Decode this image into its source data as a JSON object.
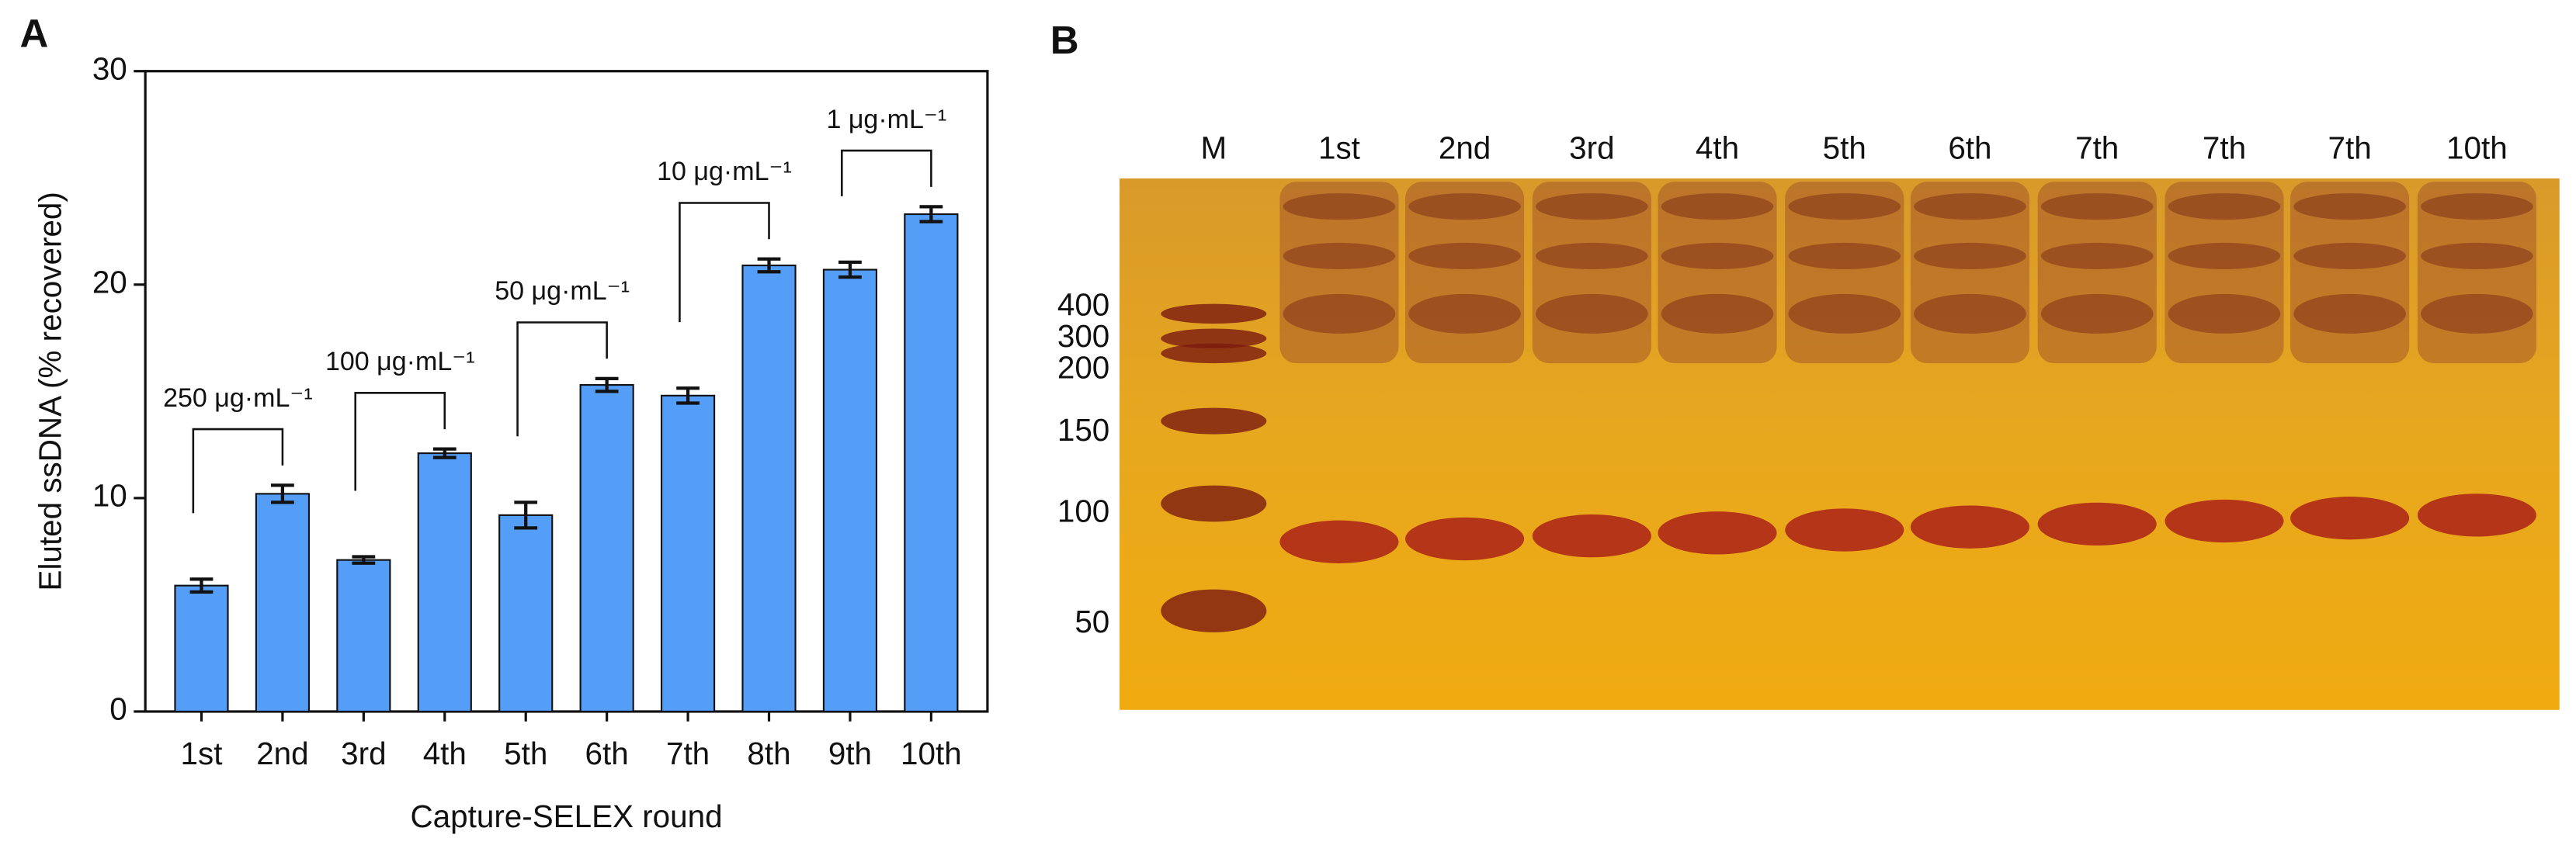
{
  "panel_a": {
    "label": "A"
  },
  "chart_data": {
    "type": "bar",
    "x_label": "Capture-SELEX round",
    "y_label": "Eluted ssDNA (% recovered)",
    "categories": [
      "1st",
      "2nd",
      "3rd",
      "4th",
      "5th",
      "6th",
      "7th",
      "8th",
      "9th",
      "10th"
    ],
    "values": [
      5.9,
      10.2,
      7.1,
      12.1,
      9.2,
      15.3,
      14.8,
      20.9,
      20.7,
      23.3
    ],
    "errors": [
      0.3,
      0.4,
      0.15,
      0.2,
      0.6,
      0.3,
      0.35,
      0.3,
      0.35,
      0.35
    ],
    "color": "#559ef8",
    "ylim": [
      0,
      30
    ],
    "yticks": [
      0,
      10,
      20,
      30
    ],
    "annotations": [
      "250 μg·mL⁻¹",
      "100 μg·mL⁻¹",
      "50 μg·mL⁻¹",
      "10 μg·mL⁻¹",
      "1 μg·mL⁻¹"
    ]
  },
  "panel_b": {
    "label": "B",
    "lanes": [
      "M",
      "1st",
      "2nd",
      "3rd",
      "4th",
      "5th",
      "6th",
      "7th",
      "7th",
      "7th",
      "10th"
    ],
    "markers": [
      "400",
      "300",
      "200",
      "150",
      "100",
      "50"
    ]
  }
}
